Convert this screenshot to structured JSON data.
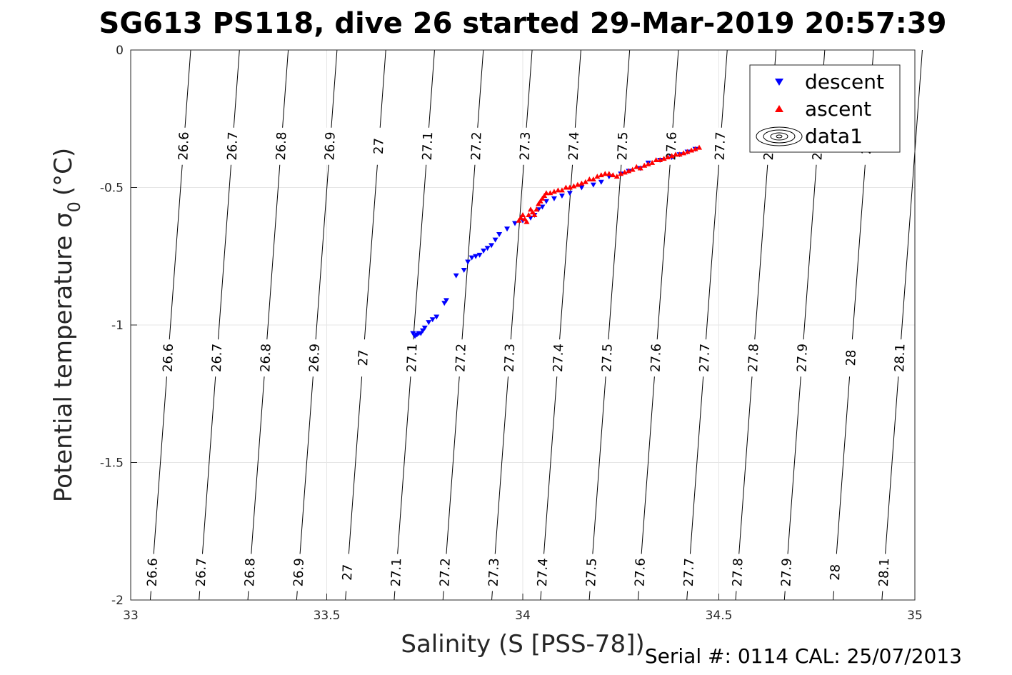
{
  "chart_data": {
    "type": "scatter",
    "title": "SG613 PS118, dive 26 started 29-Mar-2019 20:57:39",
    "xlabel": "Salinity (S [PSS-78])",
    "ylabel": "Potential temperature σ₀ (°C)",
    "ylabel_main": "Potential temperature σ",
    "ylabel_sub": "0",
    "ylabel_unit": "(°C)",
    "xlim": [
      33,
      35
    ],
    "ylim": [
      -2,
      0
    ],
    "xticks": [
      "33",
      "33.5",
      "34",
      "34.5",
      "35"
    ],
    "yticks": [
      "0",
      "-0.5",
      "-1",
      "-1.5",
      "-2"
    ],
    "grid": true,
    "legend_position": "top-right",
    "footer": "Serial #: 0114  CAL: 25/07/2013",
    "density_contours": {
      "levels": [
        "26.6",
        "26.7",
        "26.8",
        "26.9",
        "27",
        "27.1",
        "27.2",
        "27.3",
        "27.4",
        "27.5",
        "27.6",
        "27.7",
        "27.8",
        "27.9",
        "28",
        "28.1"
      ],
      "level_values": [
        26.6,
        26.7,
        26.8,
        26.9,
        27.0,
        27.1,
        27.2,
        27.3,
        27.4,
        27.5,
        27.6,
        27.7,
        27.8,
        27.9,
        28.0,
        28.1
      ],
      "color": "#000000"
    },
    "series": [
      {
        "name": "descent",
        "marker": "triangle-down",
        "color": "#0000ff",
        "x": [
          33.72,
          33.725,
          33.73,
          33.735,
          33.74,
          33.745,
          33.75,
          33.76,
          33.77,
          33.78,
          33.8,
          33.805,
          33.83,
          33.85,
          33.86,
          33.87,
          33.88,
          33.89,
          33.9,
          33.91,
          33.92,
          33.93,
          33.94,
          33.96,
          33.98,
          34.0,
          34.02,
          34.03,
          34.04,
          34.05,
          34.06,
          34.08,
          34.1,
          34.12,
          34.15,
          34.18,
          34.2,
          34.22,
          34.25,
          34.27,
          34.3,
          34.32,
          34.35,
          34.38,
          34.4,
          34.42,
          34.44
        ],
        "y": [
          -1.03,
          -1.04,
          -1.035,
          -1.03,
          -1.03,
          -1.02,
          -1.01,
          -0.99,
          -0.98,
          -0.97,
          -0.92,
          -0.91,
          -0.82,
          -0.8,
          -0.77,
          -0.755,
          -0.75,
          -0.745,
          -0.73,
          -0.72,
          -0.71,
          -0.69,
          -0.67,
          -0.65,
          -0.63,
          -0.62,
          -0.61,
          -0.6,
          -0.58,
          -0.57,
          -0.55,
          -0.54,
          -0.53,
          -0.52,
          -0.5,
          -0.49,
          -0.48,
          -0.46,
          -0.45,
          -0.44,
          -0.43,
          -0.41,
          -0.4,
          -0.39,
          -0.38,
          -0.37,
          -0.36
        ]
      },
      {
        "name": "ascent",
        "marker": "triangle-up",
        "color": "#ff0000",
        "x": [
          33.99,
          33.995,
          34.0,
          34.005,
          34.01,
          34.015,
          34.02,
          34.025,
          34.03,
          34.035,
          34.04,
          34.045,
          34.05,
          34.055,
          34.06,
          34.07,
          34.08,
          34.09,
          34.1,
          34.11,
          34.12,
          34.13,
          34.14,
          34.15,
          34.16,
          34.17,
          34.18,
          34.19,
          34.2,
          34.21,
          34.22,
          34.23,
          34.24,
          34.25,
          34.26,
          34.27,
          34.28,
          34.29,
          34.3,
          34.31,
          34.32,
          34.33,
          34.34,
          34.35,
          34.36,
          34.37,
          34.38,
          34.39,
          34.4,
          34.41,
          34.42,
          34.43,
          34.44,
          34.45
        ],
        "y": [
          -0.62,
          -0.61,
          -0.6,
          -0.615,
          -0.625,
          -0.6,
          -0.58,
          -0.59,
          -0.6,
          -0.58,
          -0.56,
          -0.55,
          -0.54,
          -0.53,
          -0.52,
          -0.52,
          -0.515,
          -0.51,
          -0.51,
          -0.5,
          -0.5,
          -0.495,
          -0.49,
          -0.485,
          -0.48,
          -0.47,
          -0.47,
          -0.46,
          -0.455,
          -0.45,
          -0.45,
          -0.455,
          -0.46,
          -0.45,
          -0.445,
          -0.44,
          -0.435,
          -0.425,
          -0.43,
          -0.42,
          -0.415,
          -0.41,
          -0.4,
          -0.4,
          -0.395,
          -0.39,
          -0.385,
          -0.38,
          -0.38,
          -0.375,
          -0.37,
          -0.365,
          -0.36,
          -0.355
        ]
      },
      {
        "name": "data1",
        "marker": "contour",
        "color": "#000000"
      }
    ]
  }
}
